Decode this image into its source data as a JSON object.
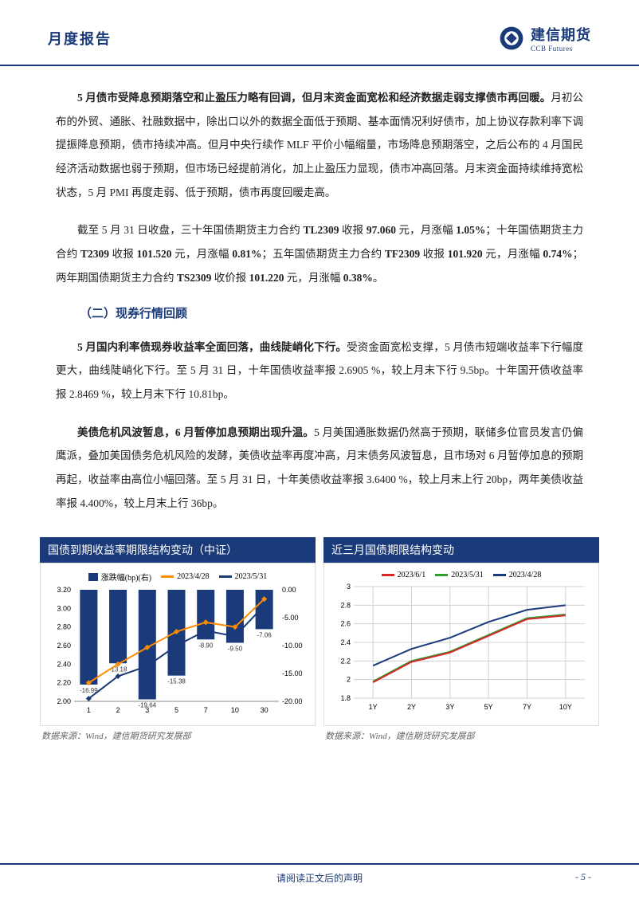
{
  "header": {
    "title": "月度报告",
    "logo_cn": "建信期货",
    "logo_en": "CCB Futures"
  },
  "body": {
    "para1_bold": "5 月债市受降息预期落空和止盈压力略有回调，但月末资金面宽松和经济数据走弱支撑债市再回暖。",
    "para1_rest": "月初公布的外贸、通胀、社融数据中，除出口以外的数据全面低于预期、基本面情况利好债市，加上协议存款利率下调提振降息预期，债市持续冲高。但月中央行续作 MLF 平价小幅缩量，市场降息预期落空，之后公布的 4 月国民经济活动数据也弱于预期，但市场已经提前消化，加上止盈压力显现，债市冲高回落。月末资金面持续维持宽松状态，5 月 PMI 再度走弱、低于预期，债市再度回暖走高。",
    "para2_a": "截至 5 月 31 日收盘，三十年国债期货主力合约 ",
    "para2_b1": "TL2309",
    "para2_c": " 收报 ",
    "para2_b2": "97.060",
    "para2_d": " 元，月涨幅 ",
    "para2_b3": "1.05%",
    "para2_e": "；十年国债期货主力合约 ",
    "para2_b4": "T2309",
    "para2_f": " 收报 ",
    "para2_b5": "101.520",
    "para2_g": " 元，月涨幅 ",
    "para2_b6": "0.81%",
    "para2_h": "；五年国债期货主力合约 ",
    "para2_b7": "TF2309",
    "para2_i": " 收报 ",
    "para2_b8": "101.920",
    "para2_j": " 元，月涨幅 ",
    "para2_b9": "0.74%",
    "para2_k": "；两年期国债期货主力合约 ",
    "para2_b10": "TS2309",
    "para2_l": " 收价报 ",
    "para2_b11": "101.220",
    "para2_m": " 元，月涨幅 ",
    "para2_b12": "0.38%",
    "para2_n": "。",
    "section2_title": "（二）现券行情回顾",
    "para3_bold": "5 月国内利率债现券收益率全面回落，曲线陡峭化下行。",
    "para3_rest": "受资金面宽松支撑，5 月债市短端收益率下行幅度更大，曲线陡峭化下行。至 5 月 31 日，十年国债收益率报 2.6905 %，较上月末下行 9.5bp。十年国开债收益率报 2.8469 %，较上月末下行 10.81bp。",
    "para4_bold": "美债危机风波暂息，6 月暂停加息预期出现升温。",
    "para4_rest": "5 月美国通胀数据仍然高于预期，联储多位官员发言仍偏鹰派，叠加美国债务危机风险的发酵，美债收益率再度冲高，月末债务风波暂息，且市场对 6 月暂停加息的预期再起，收益率由高位小幅回落。至 5 月 31 日，十年美债收益率报 3.6400 %，较上月末上行 20bp，两年美债收益率报 4.400%，较上月末上行 36bp。"
  },
  "chart1": {
    "title": "国债到期收益率期限结构变动（中证）",
    "type": "bar+line",
    "legend": [
      {
        "label": "涨跌幅(bp)(右)",
        "type": "bar",
        "color": "#1a3a7a"
      },
      {
        "label": "2023/4/28",
        "type": "line",
        "color": "#ff8c00"
      },
      {
        "label": "2023/5/31",
        "type": "line",
        "color": "#1a3a7a"
      }
    ],
    "x_labels": [
      "1",
      "2",
      "3",
      "5",
      "7",
      "10",
      "30"
    ],
    "left_axis": {
      "min": 2.0,
      "max": 3.2,
      "step": 0.2
    },
    "right_axis": {
      "min": -20.0,
      "max": 0.0,
      "step": 5.0
    },
    "bars": [
      -16.99,
      -13.18,
      -19.64,
      -15.38,
      -8.9,
      -9.5,
      -7.06
    ],
    "bar_labels": [
      "-16.99",
      "-13.18",
      "-19.64",
      "-15.38",
      "-8.90",
      "-9.50",
      "-7.06"
    ],
    "bar_color": "#1a3a7a",
    "line_apr": [
      2.2,
      2.4,
      2.58,
      2.75,
      2.85,
      2.8,
      3.1
    ],
    "line_apr_color": "#ff8c00",
    "line_may": [
      2.03,
      2.27,
      2.38,
      2.6,
      2.76,
      2.7,
      3.03
    ],
    "line_may_color": "#1a3a7a",
    "source": "数据来源：Wind，建信期货研究发展部"
  },
  "chart2": {
    "title": "近三月国债期限结构变动",
    "type": "line",
    "legend": [
      {
        "label": "2023/6/1",
        "color": "#d62728"
      },
      {
        "label": "2023/5/31",
        "color": "#2ca02c"
      },
      {
        "label": "2023/4/28",
        "color": "#1a3a7a"
      }
    ],
    "x_labels": [
      "1Y",
      "2Y",
      "3Y",
      "5Y",
      "7Y",
      "10Y"
    ],
    "y_axis": {
      "min": 1.8,
      "max": 3.0,
      "step": 0.2
    },
    "series": {
      "june": [
        1.97,
        2.19,
        2.29,
        2.47,
        2.65,
        2.69
      ],
      "may": [
        1.98,
        2.2,
        2.3,
        2.48,
        2.66,
        2.7
      ],
      "apr": [
        2.15,
        2.33,
        2.45,
        2.62,
        2.75,
        2.8
      ]
    },
    "colors": {
      "june": "#d62728",
      "may": "#2ca02c",
      "apr": "#1a3a7a"
    },
    "grid_color": "#d0d0d0",
    "source": "数据来源：Wind，建信期货研究发展部"
  },
  "footer": {
    "center": "请阅读正文后的声明",
    "page": "- 5 -"
  }
}
